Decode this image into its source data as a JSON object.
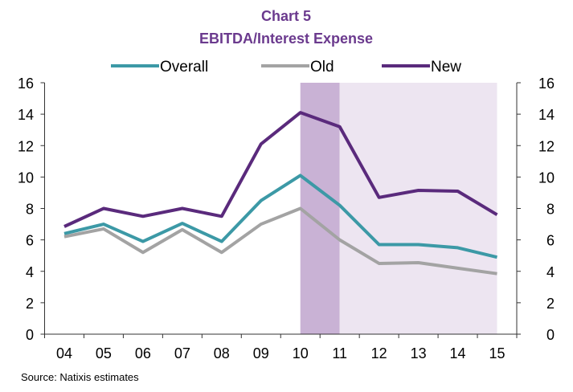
{
  "chart_data": {
    "type": "line",
    "title": "Chart 5",
    "subtitle": "EBITDA/Interest Expense",
    "categories": [
      "04",
      "05",
      "06",
      "07",
      "08",
      "09",
      "10",
      "11",
      "12",
      "13",
      "14",
      "15"
    ],
    "series": [
      {
        "name": "Overall",
        "color": "#3c99a6",
        "values": [
          6.4,
          7.0,
          5.9,
          7.05,
          5.9,
          8.5,
          10.1,
          8.2,
          5.7,
          5.7,
          5.5,
          4.9
        ]
      },
      {
        "name": "Old",
        "color": "#a3a3a3",
        "values": [
          6.2,
          6.7,
          5.2,
          6.65,
          5.2,
          7.0,
          8.0,
          6.0,
          4.5,
          4.55,
          4.2,
          3.85
        ]
      },
      {
        "name": "New",
        "color": "#5a2a7c",
        "values": [
          6.85,
          8.0,
          7.5,
          8.0,
          7.5,
          12.1,
          14.1,
          13.2,
          8.7,
          9.15,
          9.1,
          7.6
        ]
      }
    ],
    "shaded_regions": [
      {
        "from": "10",
        "to": "11",
        "color": "#c9b2d5"
      },
      {
        "from": "11",
        "to": "15",
        "color": "#ede5f1"
      }
    ],
    "ylim": [
      0,
      16
    ],
    "yticks": [
      0,
      2,
      4,
      6,
      8,
      10,
      12,
      14,
      16
    ],
    "secondary_yticks": [
      0,
      2,
      4,
      6,
      8,
      10,
      12,
      14,
      16
    ],
    "grid": false,
    "legend": "top",
    "source": "Source: Natixis estimates",
    "title_color": "#6b3a8e"
  }
}
